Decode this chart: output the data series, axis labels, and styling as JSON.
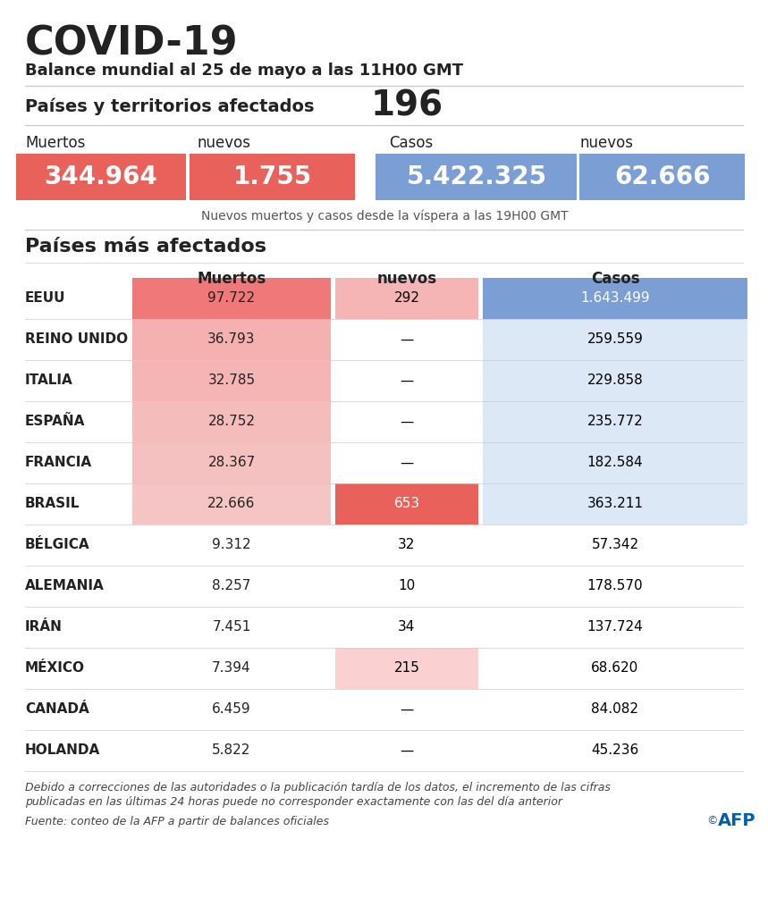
{
  "title": "COVID-19",
  "subtitle": "Balance mundial al 25 de mayo a las 11H00 GMT",
  "countries_label": "Países y territorios afectados",
  "countries_count": "196",
  "summary_note": "Nuevos muertos y casos desde la víspera a las 19H00 GMT",
  "section_title": "Países más afectados",
  "summary": {
    "muertos": "344.964",
    "nuevos_muertos": "1.755",
    "casos": "5.422.325",
    "nuevos_casos": "62.666"
  },
  "countries": [
    {
      "name": "EEUU",
      "muertos": "97.722",
      "nuevos": "292",
      "casos": "1.643.499",
      "mc": "#f07878",
      "nc": "#f5b5b5",
      "cc": "#7b9fd4",
      "nc_txt": "black",
      "cc_txt": "white"
    },
    {
      "name": "REINO UNIDO",
      "muertos": "36.793",
      "nuevos": "—",
      "casos": "259.559",
      "mc": "#f5b0b0",
      "nc": null,
      "cc": "#dce8f5",
      "nc_txt": "black",
      "cc_txt": "black"
    },
    {
      "name": "ITALIA",
      "muertos": "32.785",
      "nuevos": "—",
      "casos": "229.858",
      "mc": "#f5b5b5",
      "nc": null,
      "cc": "#dce8f5",
      "nc_txt": "black",
      "cc_txt": "black"
    },
    {
      "name": "ESPAÑA",
      "muertos": "28.752",
      "nuevos": "—",
      "casos": "235.772",
      "mc": "#f5bcbc",
      "nc": null,
      "cc": "#dce8f5",
      "nc_txt": "black",
      "cc_txt": "black"
    },
    {
      "name": "FRANCIA",
      "muertos": "28.367",
      "nuevos": "—",
      "casos": "182.584",
      "mc": "#f5c0c0",
      "nc": null,
      "cc": "#dce8f5",
      "nc_txt": "black",
      "cc_txt": "black"
    },
    {
      "name": "BRASIL",
      "muertos": "22.666",
      "nuevos": "653",
      "casos": "363.211",
      "mc": "#f5c5c5",
      "nc": "#e8615a",
      "cc": "#dce8f5",
      "nc_txt": "white",
      "cc_txt": "black"
    },
    {
      "name": "BÉLGICA",
      "muertos": "9.312",
      "nuevos": "32",
      "casos": "57.342",
      "mc": null,
      "nc": null,
      "cc": null,
      "nc_txt": "black",
      "cc_txt": "black"
    },
    {
      "name": "ALEMANIA",
      "muertos": "8.257",
      "nuevos": "10",
      "casos": "178.570",
      "mc": null,
      "nc": null,
      "cc": null,
      "nc_txt": "black",
      "cc_txt": "black"
    },
    {
      "name": "IRÁN",
      "muertos": "7.451",
      "nuevos": "34",
      "casos": "137.724",
      "mc": null,
      "nc": null,
      "cc": null,
      "nc_txt": "black",
      "cc_txt": "black"
    },
    {
      "name": "MÉXICO",
      "muertos": "7.394",
      "nuevos": "215",
      "casos": "68.620",
      "mc": null,
      "nc": "#fad0d0",
      "cc": null,
      "nc_txt": "black",
      "cc_txt": "black"
    },
    {
      "name": "CANADÁ",
      "muertos": "6.459",
      "nuevos": "—",
      "casos": "84.082",
      "mc": null,
      "nc": null,
      "cc": null,
      "nc_txt": "black",
      "cc_txt": "black"
    },
    {
      "name": "HOLANDA",
      "muertos": "5.822",
      "nuevos": "—",
      "casos": "45.236",
      "mc": null,
      "nc": null,
      "cc": null,
      "nc_txt": "black",
      "cc_txt": "black"
    }
  ],
  "colors": {
    "red_dark": "#e8615a",
    "red_med": "#f07878",
    "red_light": "#f5b0b0",
    "blue_dark": "#7b9fd4",
    "blue_light": "#dce8f5",
    "white": "#ffffff",
    "afp_blue": "#005fa8",
    "line": "#cccccc",
    "gray_text": "#555555",
    "dark_text": "#222222"
  },
  "footnote1": "Debido a correcciones de las autoridades o la publicación tardía de los datos, el incremento de las cifras",
  "footnote2": "publicadas en las últimas 24 horas puede no corresponder exactamente con las del día anterior",
  "source": "Fuente: conteo de la AFP a partir de balances oficiales",
  "afp_logo": "© AFP"
}
